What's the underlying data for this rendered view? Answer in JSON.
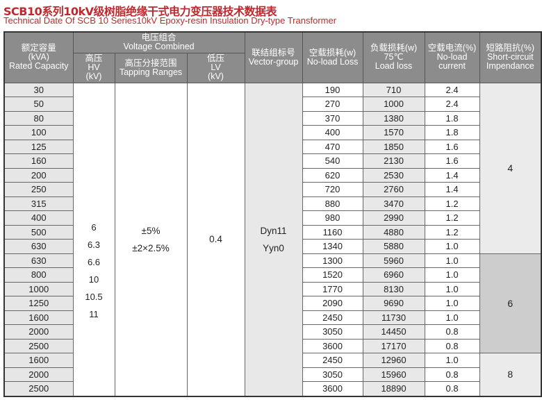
{
  "title": "SCB10系列10kV级树脂绝缘干式电力变压器技术数据表",
  "subtitle": "Technical Date Of SCB 10 Series10kV Epoxy-resin Insulation Dry-type Transformer",
  "headers": {
    "capacity": [
      "额定容量",
      "(kVA)",
      "Rated Capacity"
    ],
    "voltage": [
      "电压组合",
      "Voltage Combined"
    ],
    "hv": [
      "高压",
      "HV",
      "(kV)"
    ],
    "tapping": [
      "高压分接范围",
      "Tapping Ranges"
    ],
    "lv": [
      "低压",
      "LV",
      "(kV)"
    ],
    "vector": [
      "联结组标号",
      "Vector-group"
    ],
    "noload_loss": [
      "空载损耗(w)",
      "No-load Loss"
    ],
    "load_loss": [
      "负载损耗(w)",
      "75℃",
      "Load loss"
    ],
    "noload_current": [
      "空载电流(%)",
      "No-load",
      "current"
    ],
    "impedance": [
      "短路阻抗(%)",
      "Short-circuit",
      "Impendance"
    ]
  },
  "merged": {
    "hv": [
      "6",
      "6.3",
      "6.6",
      "10",
      "10.5",
      "11"
    ],
    "tapping": [
      "±5%",
      "±2×2.5%"
    ],
    "lv": "0.4",
    "vector": [
      "Dyn11",
      "Yyn0"
    ]
  },
  "impedance_groups": [
    {
      "value": "4",
      "rows": 12,
      "shade": "light"
    },
    {
      "value": "6",
      "rows": 7,
      "shade": "dark"
    },
    {
      "value": "8",
      "rows": 3,
      "shade": "light"
    }
  ],
  "rows": [
    [
      "30",
      "190",
      "710",
      "2.4"
    ],
    [
      "50",
      "270",
      "1000",
      "2.4"
    ],
    [
      "80",
      "370",
      "1380",
      "1.8"
    ],
    [
      "100",
      "400",
      "1570",
      "1.8"
    ],
    [
      "125",
      "470",
      "1850",
      "1.6"
    ],
    [
      "160",
      "540",
      "2130",
      "1.6"
    ],
    [
      "200",
      "620",
      "2530",
      "1.4"
    ],
    [
      "250",
      "720",
      "2760",
      "1.4"
    ],
    [
      "315",
      "880",
      "3470",
      "1.2"
    ],
    [
      "400",
      "980",
      "2990",
      "1.2"
    ],
    [
      "500",
      "1160",
      "4880",
      "1.2"
    ],
    [
      "630",
      "1340",
      "5880",
      "1.0"
    ],
    [
      "630",
      "1300",
      "5960",
      "1.0"
    ],
    [
      "800",
      "1520",
      "6960",
      "1.0"
    ],
    [
      "1000",
      "1770",
      "8130",
      "1.0"
    ],
    [
      "1250",
      "2090",
      "9690",
      "1.0"
    ],
    [
      "1600",
      "2450",
      "11730",
      "1.0"
    ],
    [
      "2000",
      "3050",
      "14450",
      "0.8"
    ],
    [
      "2500",
      "3600",
      "17170",
      "0.8"
    ],
    [
      "1600",
      "2450",
      "12960",
      "1.0"
    ],
    [
      "2000",
      "3050",
      "15960",
      "0.8"
    ],
    [
      "2500",
      "3600",
      "18890",
      "0.8"
    ]
  ]
}
